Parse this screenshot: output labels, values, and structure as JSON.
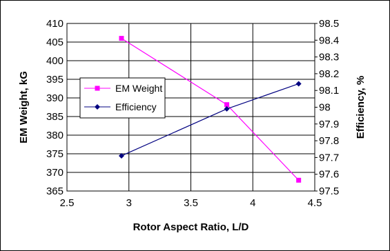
{
  "chart_data": {
    "type": "line",
    "xlabel": "Rotor Aspect Ratio, L/D",
    "ylabel_left": "EM Weight, kG",
    "ylabel_right": "Efficiency, %",
    "xlim": [
      2.5,
      4.5
    ],
    "ylim_left": [
      365,
      410
    ],
    "ylim_right": [
      97.5,
      98.5
    ],
    "x_ticks": [
      "2.5",
      "3",
      "3.5",
      "4",
      "4.5"
    ],
    "y_ticks_left": [
      "365",
      "370",
      "375",
      "380",
      "385",
      "390",
      "395",
      "400",
      "405",
      "410"
    ],
    "y_ticks_right": [
      "97.5",
      "97.6",
      "97.7",
      "97.8",
      "97.9",
      "98",
      "98.1",
      "98.2",
      "98.3",
      "98.4",
      "98.5"
    ],
    "grid": true,
    "legend_position": "left",
    "series": [
      {
        "name": "EM Weight",
        "axis": "left",
        "color": "#ff00ff",
        "marker": "square",
        "x": [
          2.94,
          3.79,
          4.37
        ],
        "y": [
          406,
          388.2,
          367.9
        ]
      },
      {
        "name": "Efficiency",
        "axis": "right",
        "color": "#000080",
        "marker": "diamond",
        "x": [
          2.94,
          3.79,
          4.37
        ],
        "y": [
          97.71,
          97.99,
          98.14
        ]
      }
    ]
  }
}
